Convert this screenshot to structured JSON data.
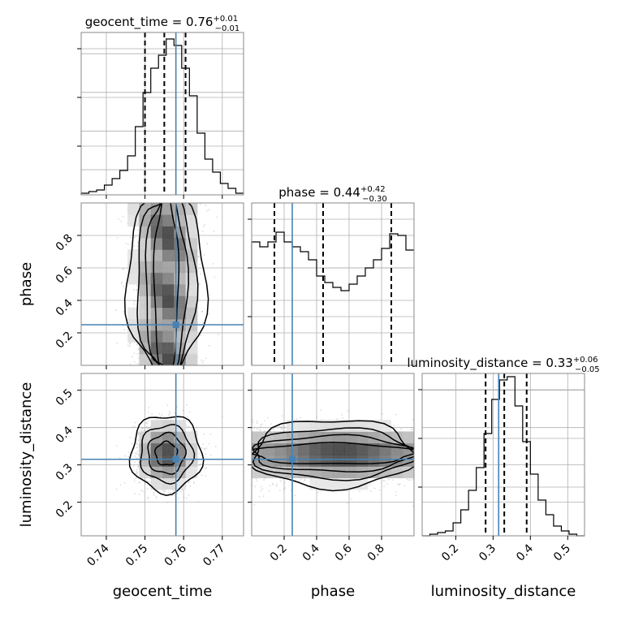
{
  "chart_data": {
    "type": "corner",
    "grid": true,
    "colors": {
      "truth": "#4682b4",
      "histogram": "#000000",
      "quantile": "#000000",
      "contour": "#000000",
      "samples": "#9a9a9a"
    },
    "parameters": [
      {
        "name": "geocent_time",
        "label": "geocent_time",
        "range": [
          0.7335,
          0.7755
        ],
        "ticks": [
          0.74,
          0.75,
          0.76,
          0.77
        ],
        "tick_labels": [
          "0.74",
          "0.75",
          "0.76",
          "0.77"
        ],
        "truth": 0.758,
        "quantiles": [
          0.75,
          0.755,
          0.7605
        ],
        "title_main": "geocent_time = 0.76",
        "title_plus": "+0.01",
        "title_minus": "−0.01",
        "hist_bins": [
          0.01,
          0.02,
          0.03,
          0.06,
          0.1,
          0.15,
          0.24,
          0.42,
          0.63,
          0.78,
          0.86,
          0.96,
          0.92,
          0.78,
          0.61,
          0.38,
          0.22,
          0.14,
          0.07,
          0.04,
          0.01
        ]
      },
      {
        "name": "phase",
        "label": "phase",
        "range": [
          0.0,
          1.0
        ],
        "ticks": [
          0.2,
          0.4,
          0.6,
          0.8
        ],
        "tick_labels": [
          "0.2",
          "0.4",
          "0.6",
          "0.8"
        ],
        "truth": 0.25,
        "quantiles": [
          0.14,
          0.44,
          0.86
        ],
        "title_main": "phase = 0.44",
        "title_plus": "+0.42",
        "title_minus": "−0.30",
        "hist_bins": [
          0.76,
          0.73,
          0.76,
          0.82,
          0.76,
          0.73,
          0.7,
          0.65,
          0.55,
          0.51,
          0.48,
          0.46,
          0.5,
          0.55,
          0.6,
          0.65,
          0.72,
          0.81,
          0.8,
          0.71
        ]
      },
      {
        "name": "luminosity_distance",
        "label": "luminosity_distance",
        "range": [
          0.11,
          0.545
        ],
        "ticks": [
          0.2,
          0.3,
          0.4,
          0.5
        ],
        "tick_labels": [
          "0.2",
          "0.3",
          "0.4",
          "0.5"
        ],
        "y_ticks": [
          0.2,
          0.3,
          0.4,
          0.5
        ],
        "y_tick_labels": [
          "0.2",
          "0.3",
          "0.4",
          "0.5"
        ],
        "truth": 0.315,
        "quantiles": [
          0.28,
          0.33,
          0.39
        ],
        "title_main": "luminosity_distance = 0.33",
        "title_plus": "+0.06",
        "title_minus": "−0.05",
        "hist_bins": [
          0.0,
          0.01,
          0.02,
          0.03,
          0.08,
          0.16,
          0.28,
          0.42,
          0.63,
          0.84,
          0.96,
          0.98,
          0.8,
          0.58,
          0.38,
          0.22,
          0.13,
          0.06,
          0.03,
          0.01,
          0.0
        ]
      }
    ],
    "phase_y_ticks": [
      0.2,
      0.4,
      0.6,
      0.8
    ],
    "phase_y_tick_labels": [
      "0.2",
      "0.4",
      "0.6",
      "0.8"
    ],
    "phase_y_range": [
      0.0,
      1.0
    ]
  }
}
